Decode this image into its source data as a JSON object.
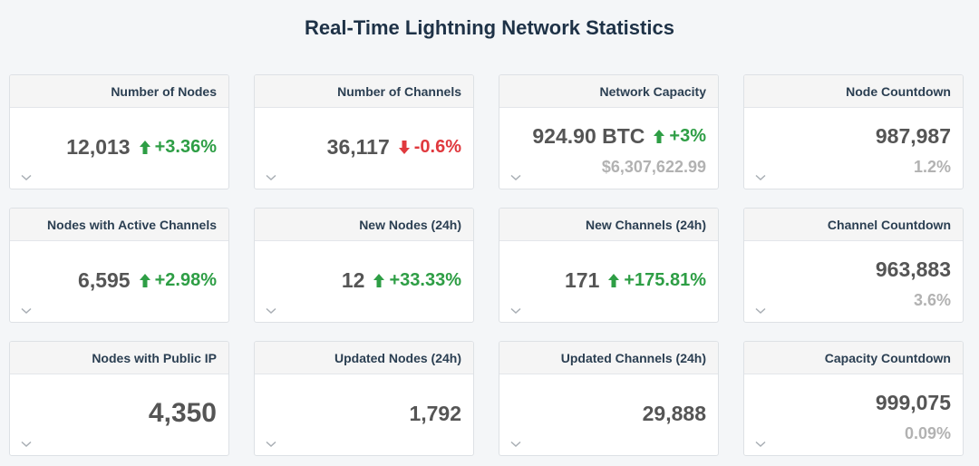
{
  "page": {
    "title": "Real-Time Lightning Network Statistics"
  },
  "colors": {
    "background": "#f4f6f8",
    "title": "#1e3247",
    "positive": "#2e9e45",
    "negative": "#e0393e",
    "muted": "#b2b2b2"
  },
  "cards": [
    {
      "title": "Number of Nodes",
      "value": "12,013",
      "change": "+3.36%",
      "change_direction": "up",
      "change_icon": "arrow-up-icon",
      "sub": ""
    },
    {
      "title": "Number of Channels",
      "value": "36,117",
      "change": "-0.6%",
      "change_direction": "down",
      "change_icon": "arrow-down-icon",
      "sub": ""
    },
    {
      "title": "Network Capacity",
      "value": "924.90 BTC",
      "change": "+3%",
      "change_direction": "up",
      "change_icon": "arrow-up-icon",
      "sub": "$6,307,622.99"
    },
    {
      "title": "Node Countdown",
      "value": "987,987",
      "change": "",
      "change_direction": "",
      "change_icon": "",
      "sub": "1.2%"
    },
    {
      "title": "Nodes with Active Channels",
      "value": "6,595",
      "change": "+2.98%",
      "change_direction": "up",
      "change_icon": "arrow-up-icon",
      "sub": ""
    },
    {
      "title": "New Nodes (24h)",
      "value": "12",
      "change": "+33.33%",
      "change_direction": "up",
      "change_icon": "arrow-up-icon",
      "sub": ""
    },
    {
      "title": "New Channels (24h)",
      "value": "171",
      "change": "+175.81%",
      "change_direction": "up",
      "change_icon": "arrow-up-icon",
      "sub": ""
    },
    {
      "title": "Channel Countdown",
      "value": "963,883",
      "change": "",
      "change_direction": "",
      "change_icon": "",
      "sub": "3.6%"
    },
    {
      "title": "Nodes with Public IP",
      "value": "4,350",
      "change": "",
      "change_direction": "",
      "change_icon": "",
      "sub": ""
    },
    {
      "title": "Updated Nodes (24h)",
      "value": "1,792",
      "change": "",
      "change_direction": "",
      "change_icon": "",
      "sub": ""
    },
    {
      "title": "Updated Channels (24h)",
      "value": "29,888",
      "change": "",
      "change_direction": "",
      "change_icon": "",
      "sub": ""
    },
    {
      "title": "Capacity Countdown",
      "value": "999,075",
      "change": "",
      "change_direction": "",
      "change_icon": "",
      "sub": "0.09%"
    }
  ]
}
